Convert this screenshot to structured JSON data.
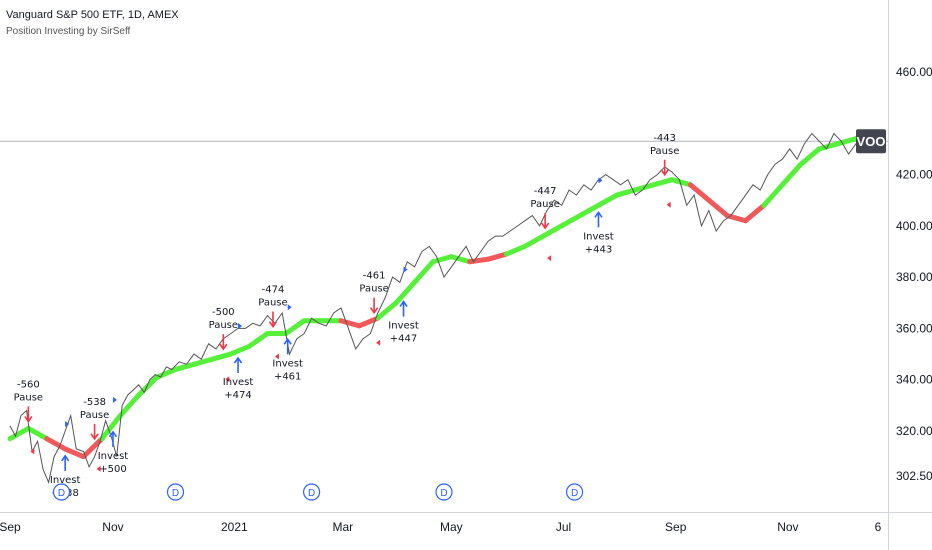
{
  "header": {
    "title": "Vanguard S&P 500 ETF, 1D, AMEX",
    "indicator": "Position Investing by SirSeff"
  },
  "colors": {
    "price_line": "#555555",
    "ma_up": "#56f03a",
    "ma_down": "#f0585a",
    "signal_up": "#2962ff",
    "signal_down": "#f23645",
    "badge_bg": "#434651",
    "dividend": "#2962ff"
  },
  "chart_data": {
    "type": "line",
    "ylim": [
      298,
      478
    ],
    "y_ticks": [
      302.5,
      320.0,
      340.0,
      360.0,
      380.0,
      400.0,
      420.0,
      460.0
    ],
    "x_ticks": [
      "Sep",
      "Nov",
      "2021",
      "Mar",
      "May",
      "Jul",
      "Sep",
      "Nov",
      "6"
    ],
    "x_tick_days": [
      0,
      56,
      122,
      181,
      240,
      301,
      362,
      423,
      472
    ],
    "last_price": 433,
    "last_label": "VOO",
    "price": {
      "days": [
        0,
        3,
        6,
        9,
        12,
        15,
        18,
        21,
        24,
        27,
        30,
        33,
        36,
        40,
        43,
        46,
        49,
        52,
        55,
        58,
        61,
        64,
        67,
        70,
        73,
        76,
        79,
        82,
        85,
        88,
        92,
        96,
        100,
        104,
        108,
        112,
        116,
        120,
        124,
        128,
        132,
        136,
        140,
        144,
        148,
        152,
        156,
        160,
        164,
        168,
        172,
        176,
        180,
        184,
        188,
        192,
        196,
        200,
        204,
        208,
        212,
        216,
        220,
        224,
        228,
        232,
        236,
        240,
        244,
        248,
        252,
        256,
        260,
        264,
        268,
        272,
        276,
        280,
        284,
        288,
        292,
        296,
        300,
        304,
        308,
        312,
        316,
        320,
        324,
        328,
        332,
        336,
        340,
        344,
        348,
        352,
        356,
        360,
        364,
        368,
        372,
        376,
        380,
        384,
        388,
        392,
        396,
        400,
        404,
        408,
        412,
        416,
        420,
        424,
        428,
        432,
        436,
        440,
        444,
        448,
        452,
        456,
        460,
        464,
        468
      ],
      "values": [
        322,
        318,
        326,
        328,
        312,
        316,
        305,
        300,
        310,
        314,
        320,
        326,
        313,
        312,
        306,
        310,
        316,
        324,
        318,
        310,
        330,
        334,
        336,
        338,
        335,
        340,
        342,
        341,
        345,
        344,
        347,
        346,
        350,
        348,
        354,
        352,
        356,
        358,
        360,
        360,
        362,
        361,
        365,
        362,
        366,
        350,
        356,
        358,
        364,
        362,
        361,
        366,
        368,
        360,
        352,
        356,
        358,
        366,
        372,
        380,
        378,
        386,
        384,
        390,
        392,
        388,
        380,
        384,
        388,
        392,
        386,
        390,
        394,
        396,
        396,
        398,
        400,
        402,
        404,
        400,
        406,
        410,
        408,
        414,
        412,
        416,
        414,
        418,
        420,
        418,
        416,
        418,
        412,
        414,
        418,
        420,
        423,
        421,
        418,
        408,
        412,
        400,
        406,
        398,
        402,
        404,
        408,
        412,
        416,
        414,
        420,
        424,
        426,
        430,
        426,
        432,
        436,
        433,
        430,
        436,
        433,
        428,
        432,
        430,
        433
      ]
    },
    "moving_average": {
      "days": [
        0,
        10,
        20,
        30,
        40,
        50,
        60,
        70,
        80,
        90,
        100,
        110,
        120,
        130,
        140,
        150,
        160,
        170,
        180,
        190,
        200,
        210,
        220,
        230,
        240,
        250,
        260,
        270,
        280,
        290,
        300,
        310,
        320,
        330,
        340,
        350,
        360,
        370,
        380,
        390,
        400,
        410,
        420,
        430,
        440,
        450,
        460,
        468
      ],
      "values": [
        317,
        321,
        317,
        313,
        310,
        317,
        326,
        334,
        341,
        344,
        346,
        348,
        350,
        353,
        358,
        358,
        363,
        363,
        363,
        361,
        364,
        370,
        378,
        386,
        388,
        386,
        387,
        389,
        392,
        396,
        400,
        404,
        408,
        412,
        414,
        416,
        418,
        416,
        410,
        404,
        402,
        408,
        416,
        424,
        430,
        432,
        434,
        436
      ],
      "trend": [
        "up",
        "up",
        "down",
        "down",
        "down",
        "up",
        "up",
        "up",
        "up",
        "up",
        "up",
        "up",
        "up",
        "up",
        "up",
        "up",
        "up",
        "up",
        "down",
        "down",
        "up",
        "up",
        "up",
        "up",
        "up",
        "down",
        "down",
        "up",
        "up",
        "up",
        "up",
        "up",
        "up",
        "up",
        "up",
        "up",
        "up",
        "down",
        "down",
        "down",
        "down",
        "up",
        "up",
        "up",
        "up",
        "up",
        "up",
        "up"
      ]
    },
    "signals": [
      {
        "type": "Pause",
        "value": "-560",
        "day": 10
      },
      {
        "type": "Invest",
        "value": "+538",
        "day": 30
      },
      {
        "type": "Pause",
        "value": "-538",
        "day": 46
      },
      {
        "type": "Invest",
        "value": "+500",
        "day": 56
      },
      {
        "type": "Pause",
        "value": "-500",
        "day": 116
      },
      {
        "type": "Invest",
        "value": "+474",
        "day": 124
      },
      {
        "type": "Pause",
        "value": "-474",
        "day": 143
      },
      {
        "type": "Invest",
        "value": "+461",
        "day": 151
      },
      {
        "type": "Pause",
        "value": "-461",
        "day": 198
      },
      {
        "type": "Invest",
        "value": "+447",
        "day": 214
      },
      {
        "type": "Pause",
        "value": "-447",
        "day": 291
      },
      {
        "type": "Invest",
        "value": "+443",
        "day": 320
      },
      {
        "type": "Pause",
        "value": "-443",
        "day": 356
      }
    ],
    "dividend_label": "D",
    "dividend_days": [
      28,
      90,
      164,
      236,
      307
    ]
  }
}
